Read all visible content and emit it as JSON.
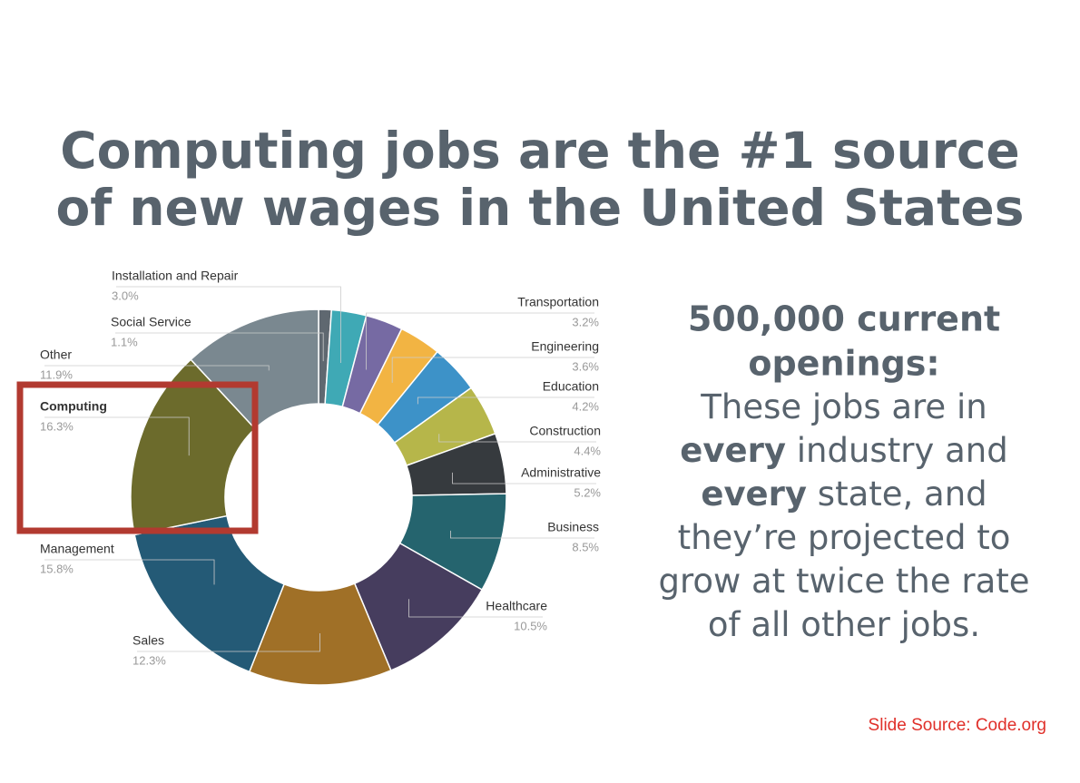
{
  "chart_data": {
    "type": "pie",
    "title": [
      "Computing jobs are the #1 source",
      "of new wages in the United States"
    ],
    "categories": [
      "Social Service",
      "Installation and Repair",
      "Transportation",
      "Engineering",
      "Education",
      "Construction",
      "Administrative",
      "Business",
      "Healthcare",
      "Sales",
      "Management",
      "Computing",
      "Other"
    ],
    "values": [
      1.1,
      3.0,
      3.2,
      3.6,
      4.2,
      4.4,
      5.2,
      8.5,
      10.5,
      12.3,
      15.8,
      16.3,
      11.9
    ],
    "value_labels": [
      "1.1%",
      "3.0%",
      "3.2%",
      "3.6%",
      "4.2%",
      "4.4%",
      "5.2%",
      "8.5%",
      "10.5%",
      "12.3%",
      "15.8%",
      "16.3%",
      "11.9%"
    ],
    "colors": [
      "#5f6870",
      "#3fa9b5",
      "#766aa3",
      "#f2b443",
      "#3d92c8",
      "#b6b64a",
      "#363a3e",
      "#25646e",
      "#463d5e",
      "#a07027",
      "#245a76",
      "#6c6b2c",
      "#7a8890"
    ]
  },
  "text_panel": {
    "heading": [
      "500,000 current",
      "openings:"
    ],
    "lines": [
      [
        {
          "text": "These jobs are in",
          "bold": false
        }
      ],
      [
        {
          "text": "every",
          "bold": true
        },
        {
          "text": " industry and",
          "bold": false
        }
      ],
      [
        {
          "text": "every",
          "bold": true
        },
        {
          "text": " state, and",
          "bold": false
        }
      ],
      [
        {
          "text": "they’re projected to",
          "bold": false
        }
      ],
      [
        {
          "text": "grow at twice the rate",
          "bold": false
        }
      ],
      [
        {
          "text": "of all other jobs.",
          "bold": false
        }
      ]
    ]
  },
  "source": "Slide Source: Code.org"
}
